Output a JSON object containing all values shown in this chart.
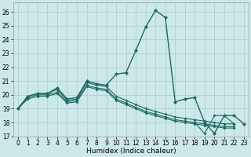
{
  "title": "",
  "xlabel": "Humidex (Indice chaleur)",
  "bg_color": "#cce8e8",
  "grid_color": "#aacccc",
  "line_color": "#1a6b60",
  "xlim": [
    -0.5,
    23.5
  ],
  "ylim": [
    17,
    26.7
  ],
  "yticks": [
    17,
    18,
    19,
    20,
    21,
    22,
    23,
    24,
    25,
    26
  ],
  "xticks": [
    0,
    1,
    2,
    3,
    4,
    5,
    6,
    7,
    8,
    9,
    10,
    11,
    12,
    13,
    14,
    15,
    16,
    17,
    18,
    19,
    20,
    21,
    22,
    23
  ],
  "series": [
    {
      "y": [
        19.0,
        19.9,
        20.1,
        20.1,
        20.5,
        19.7,
        19.8,
        21.0,
        20.8,
        20.7,
        21.5,
        21.6,
        23.2,
        24.9,
        26.1,
        25.6,
        19.5,
        19.7,
        19.8,
        18.0,
        17.2,
        18.5,
        18.5,
        17.9
      ],
      "lw": 1.0,
      "ms": 2.5
    },
    {
      "y": [
        19.0,
        19.9,
        20.1,
        20.1,
        20.4,
        19.6,
        19.7,
        20.9,
        20.7,
        20.6,
        19.9,
        19.6,
        19.3,
        19.0,
        18.8,
        18.6,
        18.4,
        18.3,
        18.2,
        18.1,
        18.0,
        17.9,
        17.9,
        null
      ],
      "lw": 0.8,
      "ms": 2.0
    },
    {
      "y": [
        19.0,
        19.8,
        20.0,
        20.0,
        20.2,
        19.5,
        19.6,
        20.7,
        20.5,
        20.4,
        19.7,
        19.4,
        19.1,
        18.8,
        18.6,
        18.4,
        18.2,
        18.1,
        18.0,
        17.9,
        17.8,
        17.7,
        17.7,
        null
      ],
      "lw": 0.8,
      "ms": 2.0
    },
    {
      "y": [
        19.0,
        19.7,
        19.9,
        19.9,
        20.1,
        19.4,
        19.5,
        20.6,
        20.4,
        20.3,
        19.6,
        19.3,
        19.0,
        18.7,
        18.5,
        18.3,
        18.1,
        18.0,
        17.9,
        17.8,
        17.7,
        17.6,
        17.6,
        null
      ],
      "lw": 0.8,
      "ms": 2.0
    },
    {
      "y": [
        null,
        null,
        null,
        null,
        null,
        null,
        null,
        null,
        null,
        null,
        null,
        null,
        null,
        null,
        null,
        null,
        null,
        null,
        18.0,
        17.2,
        18.5,
        18.5,
        17.9,
        null
      ],
      "lw": 0.8,
      "ms": 2.0
    }
  ]
}
